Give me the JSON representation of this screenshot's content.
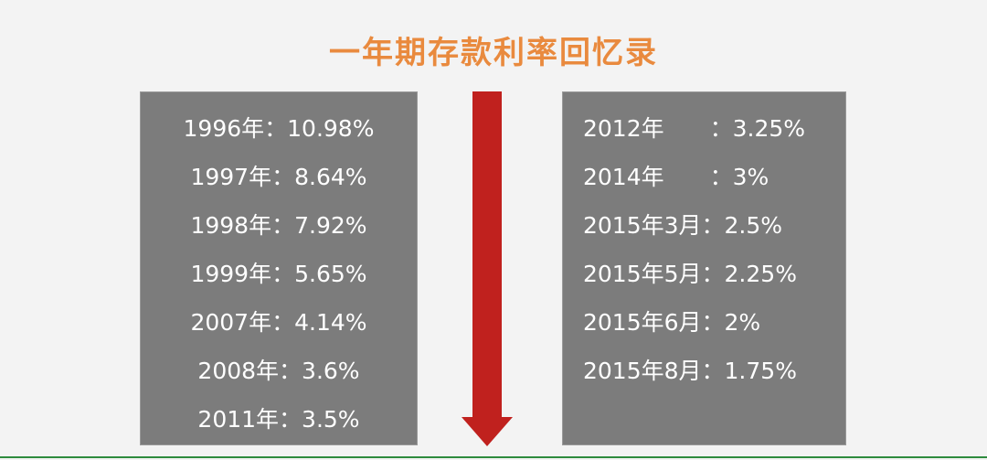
{
  "title": "一年期存款利率回忆录",
  "left_list": [
    "1996年：10.98%",
    "1997年：8.64%",
    "1998年：7.92%",
    "1999年：5.65%",
    "2007年：4.14%",
    "2008年：3.6%",
    "2011年：3.5%"
  ],
  "right_list": [
    "2012年　　：3.25%",
    "2014年　　：3%",
    "2015年3月：2.5%",
    "2015年5月：2.25%",
    "2015年6月：2%",
    "2015年8月：1.75%"
  ]
}
